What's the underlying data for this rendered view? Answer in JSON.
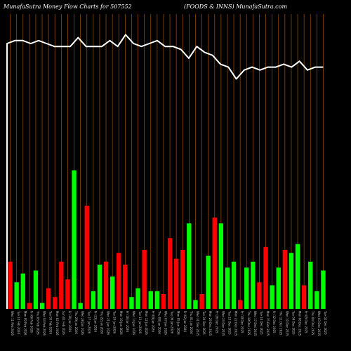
{
  "header": {
    "left_title": "MunafaSutra  Money Flow  Charts for 507552",
    "right_title": "(FOODS & INNS) MunafaSutra.com"
  },
  "colors": {
    "background": "#000000",
    "grid": "#8b4a0a",
    "up": "#00ff00",
    "down": "#ff0000",
    "line": "#ffffff"
  },
  "chart_data": {
    "type": "bar",
    "title": "MunafaSutra  Money Flow  Charts for 507552",
    "subtitle": "(FOODS & INNS) MunafaSutra.com",
    "categories": [
      "Wed 11 Feb 2026",
      "Tue 10 Feb 2026",
      "Mon 09 Feb 2026",
      "Fri 06 Feb 2026",
      "Thu 05 Feb 2026",
      "Wed 04 Feb 2026",
      "Tue 03 Feb 2026",
      "Mon 02 Feb 2026",
      "Sun 01 Feb 2026",
      "Fri 30 Jan 2026",
      "Thu 29 Jan 2026",
      "Wed 28 Jan 2026",
      "Tue 27 Jan 2026",
      "Fri 23 Jan 2026",
      "Thu 22 Jan 2026",
      "Wed 21 Jan 2026",
      "Tue 20 Jan 2026",
      "Mon 19 Jan 2026",
      "Fri 16 Jan 2026",
      "Wed 14 Jan 2026",
      "Tue 13 Jan 2026",
      "Mon 12 Jan 2026",
      "Fri 09 Jan 2026",
      "Thu 08 Jan 2026",
      "Wed 07 Jan 2026",
      "Tue 06 Jan 2026",
      "Mon 05 Jan 2026",
      "Fri 02 Jan 2026",
      "Thu 01 Jan 2026",
      "Wed 31 Dec 2025",
      "Tue 30 Dec 2025",
      "Mon 29 Dec 2025",
      "Fri 26 Dec 2025",
      "Wed 24 Dec 2025",
      "Tue 23 Dec 2025",
      "Mon 22 Dec 2025",
      "Fri 19 Dec 2025",
      "Thu 18 Dec 2025",
      "Wed 17 Dec 2025",
      "Tue 16 Dec 2025",
      "Mon 15 Dec 2025",
      "Fri 12 Dec 2025",
      "Thu 11 Dec 2025",
      "Wed 10 Dec 2025",
      "Tue 09 Dec 2025",
      "Mon 08 Dec 2025",
      "Fri 05 Dec 2025",
      "Thu 04 Dec 2025",
      "Wed 03 Dec 2025",
      "Tue 02 Dec 2025"
    ],
    "bar_directions": [
      "down",
      "up",
      "up",
      "down",
      "up",
      "up",
      "down",
      "down",
      "down",
      "down",
      "up",
      "up",
      "down",
      "up",
      "up",
      "down",
      "up",
      "down",
      "down",
      "up",
      "up",
      "down",
      "up",
      "up",
      "down",
      "down",
      "down",
      "down",
      "up",
      "up",
      "down",
      "up",
      "down",
      "up",
      "up",
      "up",
      "down",
      "up",
      "up",
      "down",
      "down",
      "up",
      "up",
      "down",
      "up",
      "up",
      "down",
      "up",
      "up",
      "up"
    ],
    "values": [
      16,
      9,
      12,
      2,
      13,
      2,
      7,
      4,
      16,
      10,
      47,
      2,
      35,
      6,
      15,
      16,
      11,
      19,
      15,
      4,
      7,
      20,
      6,
      6,
      5,
      24,
      17,
      20,
      29,
      3,
      5,
      18,
      31,
      29,
      14,
      16,
      3,
      14,
      16,
      9,
      21,
      8,
      14,
      20,
      19,
      22,
      8,
      16,
      6,
      13
    ],
    "line_values": [
      90,
      91,
      91,
      90,
      91,
      90,
      89,
      89,
      89,
      92,
      89,
      89,
      89,
      91,
      89,
      93,
      90,
      89,
      90,
      91,
      89,
      89,
      88,
      85,
      89,
      87,
      86,
      83,
      82,
      78,
      81,
      82,
      81,
      82,
      82,
      83,
      82,
      84,
      81,
      82,
      82
    ],
    "ylim": [
      0,
      100
    ],
    "grid": true
  }
}
